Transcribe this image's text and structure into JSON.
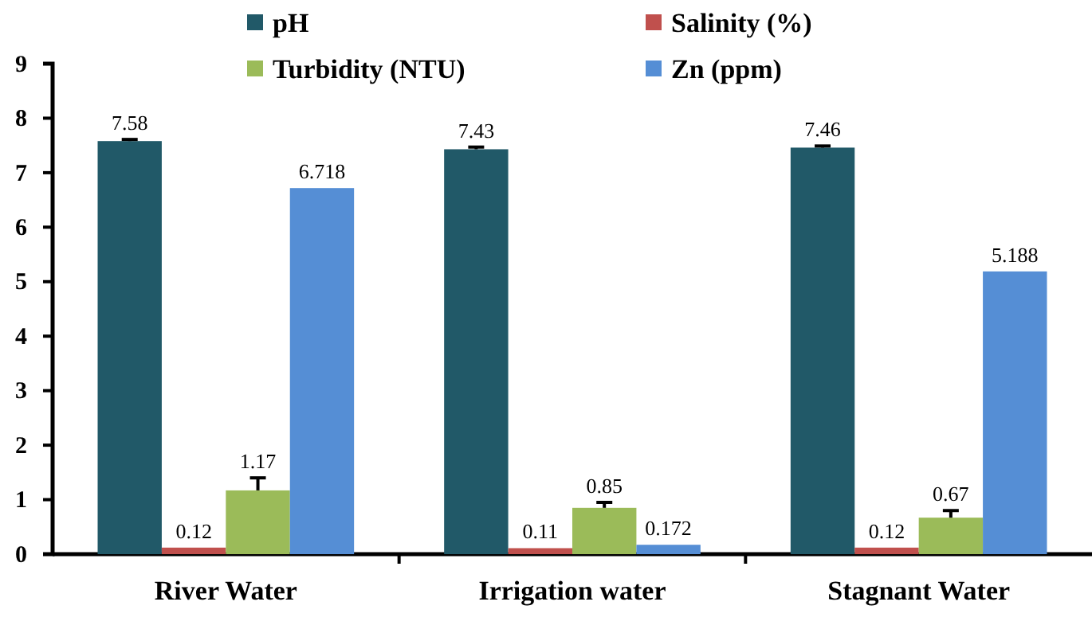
{
  "chart_data": {
    "type": "bar",
    "categories": [
      "River Water",
      "Irrigation water",
      "Stagnant Water"
    ],
    "series": [
      {
        "name": "pH",
        "color": "#215968",
        "values": [
          7.58,
          7.43,
          7.46
        ],
        "errors": [
          [
            7.58,
            7.61
          ],
          [
            7.43,
            7.47
          ],
          [
            7.46,
            7.49
          ]
        ]
      },
      {
        "name": "Salinity (%)",
        "color": "#c0504d",
        "values": [
          0.12,
          0.11,
          0.12
        ]
      },
      {
        "name": "Turbidity (NTU)",
        "color": "#9bbb59",
        "values": [
          1.17,
          0.85,
          0.67
        ],
        "errors": [
          [
            1.17,
            1.4
          ],
          [
            0.85,
            0.95
          ],
          [
            0.67,
            0.8
          ]
        ]
      },
      {
        "name": "Zn (ppm)",
        "color": "#558ed5",
        "values": [
          6.718,
          0.172,
          5.188
        ]
      }
    ],
    "data_labels": true,
    "ylim": [
      0,
      9
    ],
    "yticks": [
      0,
      1,
      2,
      3,
      4,
      5,
      6,
      7,
      8,
      9
    ],
    "grid": false,
    "legend": "top"
  }
}
